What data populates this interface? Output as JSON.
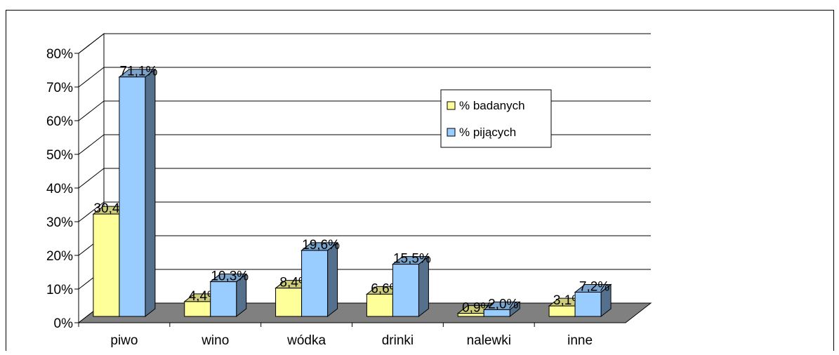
{
  "chart_data": {
    "type": "bar",
    "categories": [
      "piwo",
      "wino",
      "wódka",
      "drinki",
      "nalewki",
      "inne"
    ],
    "series": [
      {
        "name": "% badanych",
        "values": [
          30.4,
          4.4,
          8.4,
          6.6,
          0.9,
          3.1
        ],
        "labels": [
          "30,4%",
          "4,4%",
          "8,4%",
          "6,6%",
          "0,9%",
          "3,1%"
        ]
      },
      {
        "name": "% pijących",
        "values": [
          71.1,
          10.3,
          19.6,
          15.5,
          2.0,
          7.2
        ],
        "labels": [
          "71,1%",
          "10,3%",
          "19,6%",
          "15,5%",
          "2,0%",
          "7,2%"
        ]
      }
    ],
    "yticks": [
      "0%",
      "10%",
      "20%",
      "30%",
      "40%",
      "50%",
      "60%",
      "70%",
      "80%"
    ],
    "ylim": [
      0,
      80
    ],
    "legend": "right",
    "grid": true,
    "colors": {
      "series1": "#FFFF99",
      "series2": "#99CCFF",
      "floor": "#808080"
    }
  }
}
